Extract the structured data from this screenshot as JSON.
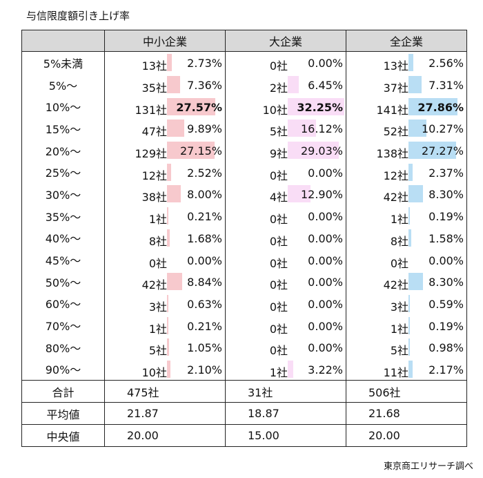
{
  "title": "与信限度額引き上げ率",
  "source": "東京商工リサーチ調べ",
  "columns": [
    "中小企業",
    "大企業",
    "全企業"
  ],
  "colors": {
    "small": "#f7c9cd",
    "large": "#f9ddf6",
    "all": "#b9def4"
  },
  "chart_data": {
    "type": "table",
    "categories": [
      "5%未満",
      "5%～",
      "10%～",
      "15%～",
      "20%～",
      "25%～",
      "30%～",
      "35%～",
      "40%～",
      "45%～",
      "50%～",
      "60%～",
      "70%～",
      "80%～",
      "90%～"
    ],
    "series": [
      {
        "name": "中小企業",
        "counts": [
          "13社",
          "35社",
          "131社",
          "47社",
          "129社",
          "12社",
          "38社",
          "1社",
          "8社",
          "0社",
          "42社",
          "3社",
          "1社",
          "5社",
          "10社"
        ],
        "percents": [
          "2.73%",
          "7.36%",
          "27.57%",
          "9.89%",
          "27.15%",
          "2.52%",
          "8.00%",
          "0.21%",
          "1.68%",
          "0.00%",
          "8.84%",
          "0.63%",
          "0.21%",
          "1.05%",
          "2.10%"
        ],
        "values": [
          2.73,
          7.36,
          27.57,
          9.89,
          27.15,
          2.52,
          8.0,
          0.21,
          1.68,
          0.0,
          8.84,
          0.63,
          0.21,
          1.05,
          2.1
        ],
        "highlight": 2
      },
      {
        "name": "大企業",
        "counts": [
          "0社",
          "2社",
          "10社",
          "5社",
          "9社",
          "0社",
          "4社",
          "0社",
          "0社",
          "0社",
          "0社",
          "0社",
          "0社",
          "0社",
          "1社"
        ],
        "percents": [
          "0.00%",
          "6.45%",
          "32.25%",
          "16.12%",
          "29.03%",
          "0.00%",
          "12.90%",
          "0.00%",
          "0.00%",
          "0.00%",
          "0.00%",
          "0.00%",
          "0.00%",
          "0.00%",
          "3.22%"
        ],
        "values": [
          0.0,
          6.45,
          32.25,
          16.12,
          29.03,
          0.0,
          12.9,
          0.0,
          0.0,
          0.0,
          0.0,
          0.0,
          0.0,
          0.0,
          3.22
        ],
        "highlight": 2
      },
      {
        "name": "全企業",
        "counts": [
          "13社",
          "37社",
          "141社",
          "52社",
          "138社",
          "12社",
          "42社",
          "1社",
          "8社",
          "0社",
          "42社",
          "3社",
          "1社",
          "5社",
          "11社"
        ],
        "percents": [
          "2.56%",
          "7.31%",
          "27.86%",
          "10.27%",
          "27.27%",
          "2.37%",
          "8.30%",
          "0.19%",
          "1.58%",
          "0.00%",
          "8.30%",
          "0.59%",
          "0.19%",
          "0.98%",
          "2.17%"
        ],
        "values": [
          2.56,
          7.31,
          27.86,
          10.27,
          27.27,
          2.37,
          8.3,
          0.19,
          1.58,
          0.0,
          8.3,
          0.59,
          0.19,
          0.98,
          2.17
        ],
        "highlight": 2
      }
    ],
    "summary": [
      {
        "label": "合計",
        "values": [
          "475社",
          "31社",
          "506社"
        ]
      },
      {
        "label": "平均値",
        "values": [
          "21.87",
          "18.87",
          "21.68"
        ]
      },
      {
        "label": "中央値",
        "values": [
          "20.00",
          "15.00",
          "20.00"
        ]
      }
    ]
  }
}
